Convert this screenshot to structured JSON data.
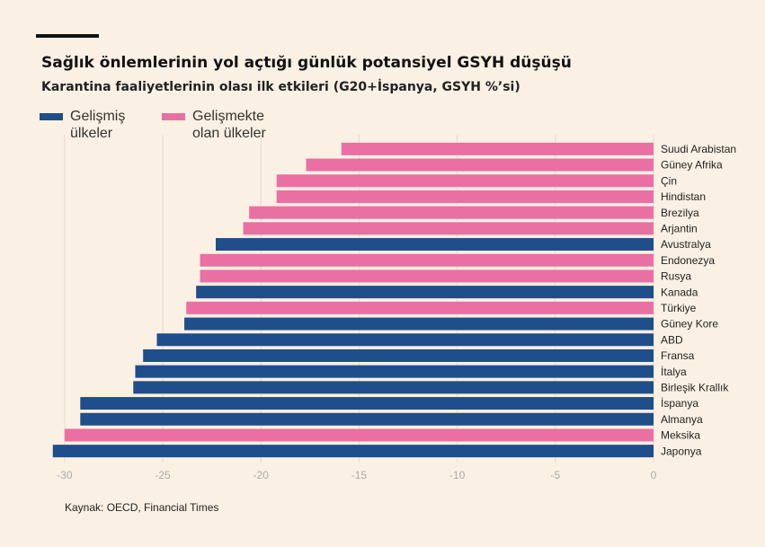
{
  "chart_data": {
    "type": "bar",
    "orientation": "horizontal",
    "title": "Sağlık önlemlerinin yol açtığı günlük potansiyel GSYH düşüşü",
    "subtitle": "Karantina faaliyetlerinin olası ilk etkileri (G20+İspanya, GSYH %’si)",
    "source": "Kaynak: OECD, Financial Times",
    "categories": [
      "Suudi Arabistan",
      "Güney Afrika",
      "Çin",
      "Hindistan",
      "Brezilya",
      "Arjantin",
      "Avustralya",
      "Endonezya",
      "Rusya",
      "Kanada",
      "Türkiye",
      "Güney Kore",
      "ABD",
      "Fransa",
      "İtalya",
      "Birleşik Krallık",
      "İspanya",
      "Almanya",
      "Meksika",
      "Japonya"
    ],
    "series": [
      {
        "name": "Gelişmiş ülkeler",
        "color": "#1f4e8a",
        "values": [
          null,
          null,
          null,
          null,
          null,
          null,
          -22.3,
          null,
          null,
          -23.3,
          null,
          -23.9,
          -25.3,
          -26.0,
          -26.4,
          -26.5,
          -29.2,
          -29.2,
          null,
          -30.6
        ]
      },
      {
        "name": "Gelişmekte olan ülkeler",
        "color": "#ea6fa3",
        "values": [
          -15.9,
          -17.7,
          -19.2,
          -19.2,
          -20.6,
          -20.9,
          null,
          -23.1,
          -23.1,
          null,
          -23.8,
          null,
          null,
          null,
          null,
          null,
          null,
          null,
          -30.0,
          null
        ]
      }
    ],
    "xlim": [
      -31,
      0
    ],
    "xticks": [
      -30,
      -25,
      -20,
      -15,
      -10,
      -5,
      0
    ],
    "grid": true
  }
}
